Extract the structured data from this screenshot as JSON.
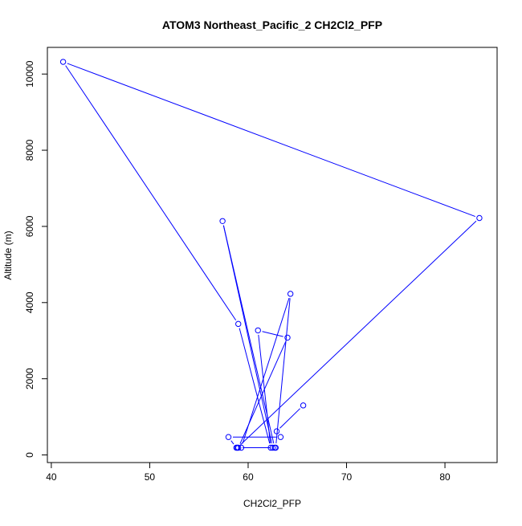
{
  "chart_data": {
    "type": "scatter",
    "title": "ATOM3 Northeast_Pacific_2 CH2Cl2_PFP",
    "xlabel": "CH2Cl2_PFP",
    "ylabel": "Altitude (m)",
    "xlim": [
      39.6,
      85.3
    ],
    "ylim": [
      -200,
      10700
    ],
    "x_ticks": [
      40,
      50,
      60,
      70,
      80
    ],
    "y_ticks": [
      0,
      2000,
      4000,
      6000,
      8000,
      10000
    ],
    "x_tick_labels": [
      "40",
      "50",
      "60",
      "70",
      "80"
    ],
    "y_tick_labels": [
      "0",
      "2000",
      "4000",
      "6000",
      "8000",
      "10000"
    ],
    "grid": false,
    "series": [
      {
        "color": "#0000ff",
        "marker": "open-circle",
        "connected": true,
        "points": [
          {
            "x": 65.6,
            "y": 1300
          },
          {
            "x": 62.9,
            "y": 620
          },
          {
            "x": 63.3,
            "y": 470
          },
          {
            "x": 58.0,
            "y": 470
          },
          {
            "x": 58.8,
            "y": 190
          },
          {
            "x": 59.3,
            "y": 190
          },
          {
            "x": 64.3,
            "y": 4230
          },
          {
            "x": 62.8,
            "y": 190
          },
          {
            "x": 62.5,
            "y": 190
          },
          {
            "x": 57.4,
            "y": 6140
          },
          {
            "x": 62.7,
            "y": 190
          },
          {
            "x": 59.0,
            "y": 190
          },
          {
            "x": 64.0,
            "y": 3080
          },
          {
            "x": 61.0,
            "y": 3270
          },
          {
            "x": 62.3,
            "y": 190
          },
          {
            "x": 59.0,
            "y": 3440
          },
          {
            "x": 41.2,
            "y": 10320
          },
          {
            "x": 83.5,
            "y": 6220
          },
          {
            "x": 58.9,
            "y": 190
          }
        ]
      }
    ]
  }
}
